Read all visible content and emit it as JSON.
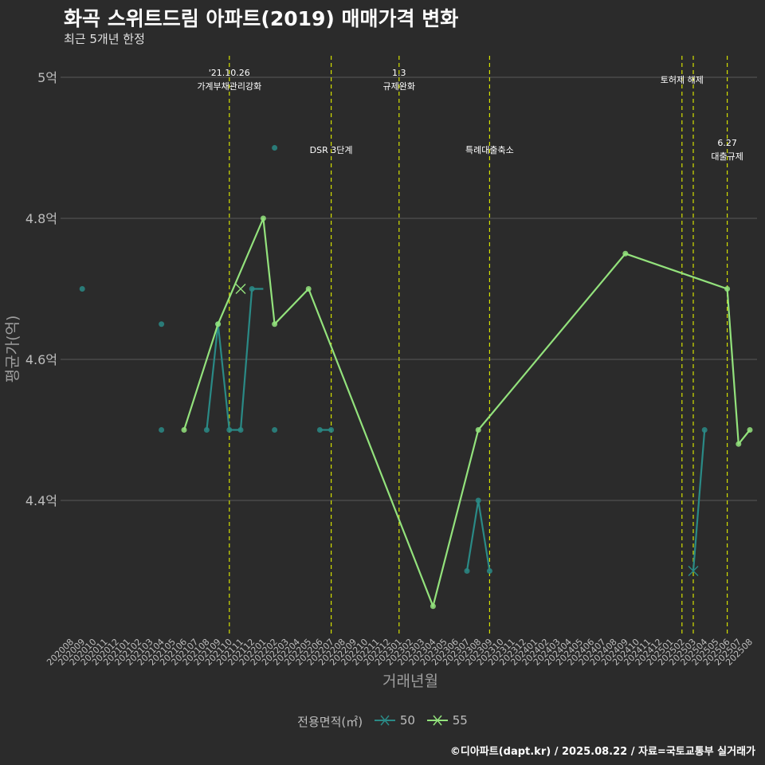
{
  "title": "화곡 스위트드림 아파트(2019) 매매가격 변화",
  "subtitle": "최근 5개년 한정",
  "caption": "©디아파트(dapt.kr) / 2025.08.22 / 자료=국토교통부 실거래가",
  "colors": {
    "background": "#2b2b2b",
    "grid": "#5a5a5a",
    "series_50": "#2a8a86",
    "series_55": "#93e27c",
    "vline": "#d4e000",
    "text": "#ffffff",
    "axis_text": "#bdbdbd"
  },
  "chart_data": {
    "type": "line",
    "title": "화곡 스위트드림 아파트(2019) 매매가격 변화",
    "xlabel": "거래년월",
    "ylabel": "평균가(억)",
    "ylim": [
      4.215,
      5.03
    ],
    "yticks": [
      4.4,
      4.6,
      4.8,
      5.0
    ],
    "ytick_labels": [
      "4.4억",
      "4.6억",
      "4.8억",
      "5억"
    ],
    "months": [
      "202008",
      "202009",
      "202010",
      "202011",
      "202012",
      "202101",
      "202102",
      "202103",
      "202104",
      "202105",
      "202106",
      "202107",
      "202108",
      "202109",
      "202110",
      "202111",
      "202112",
      "202201",
      "202202",
      "202203",
      "202204",
      "202205",
      "202206",
      "202207",
      "202208",
      "202209",
      "202210",
      "202211",
      "202212",
      "202301",
      "202302",
      "202303",
      "202304",
      "202305",
      "202306",
      "202307",
      "202308",
      "202309",
      "202310",
      "202311",
      "202312",
      "202401",
      "202402",
      "202403",
      "202404",
      "202405",
      "202406",
      "202407",
      "202408",
      "202409",
      "202410",
      "202411",
      "202412",
      "202501",
      "202502",
      "202503",
      "202504",
      "202505",
      "202506",
      "202507",
      "202508"
    ],
    "legend_title": "전용면적(㎡)",
    "series": [
      {
        "name": "50",
        "color_key": "series_50",
        "lines": [
          [
            [
              "202108",
              4.5
            ],
            [
              "202109",
              4.65
            ],
            [
              "202110",
              4.5
            ],
            [
              "202111",
              4.5
            ],
            [
              "202112",
              4.7
            ],
            [
              "202201",
              4.7
            ]
          ],
          [
            [
              "202206",
              4.5
            ],
            [
              "202207",
              4.5
            ]
          ],
          [
            [
              "202307",
              4.3
            ],
            [
              "202308",
              4.4
            ],
            [
              "202309",
              4.3
            ]
          ],
          [
            [
              "202503",
              4.3
            ],
            [
              "202504",
              4.5
            ]
          ]
        ],
        "points": [
          [
            "202009",
            4.7
          ],
          [
            "202104",
            4.65
          ],
          [
            "202104",
            4.5
          ],
          [
            "202108",
            4.5
          ],
          [
            "202109",
            4.65
          ],
          [
            "202110",
            4.5
          ],
          [
            "202111",
            4.5
          ],
          [
            "202112",
            4.7
          ],
          [
            "202202",
            4.9
          ],
          [
            "202202",
            4.5
          ],
          [
            "202206",
            4.5
          ],
          [
            "202207",
            4.5
          ],
          [
            "202307",
            4.3
          ],
          [
            "202308",
            4.4
          ],
          [
            "202309",
            4.3
          ],
          [
            "202504",
            4.5
          ]
        ],
        "crosses": [
          [
            "202503",
            4.3
          ]
        ]
      },
      {
        "name": "55",
        "color_key": "series_55",
        "lines": [
          [
            [
              "202106",
              4.5
            ],
            [
              "202109",
              4.65
            ],
            [
              "202201",
              4.8
            ],
            [
              "202202",
              4.65
            ],
            [
              "202205",
              4.7
            ],
            [
              "202304",
              4.25
            ],
            [
              "202308",
              4.5
            ],
            [
              "202409",
              4.75
            ],
            [
              "202506",
              4.7
            ],
            [
              "202507",
              4.48
            ],
            [
              "202508",
              4.5
            ]
          ]
        ],
        "points": [
          [
            "202106",
            4.5
          ],
          [
            "202109",
            4.65
          ],
          [
            "202201",
            4.8
          ],
          [
            "202202",
            4.65
          ],
          [
            "202205",
            4.7
          ],
          [
            "202304",
            4.25
          ],
          [
            "202308",
            4.5
          ],
          [
            "202409",
            4.75
          ],
          [
            "202506",
            4.7
          ],
          [
            "202507",
            4.48
          ],
          [
            "202508",
            4.5
          ]
        ],
        "crosses": [
          [
            "202111",
            4.7
          ]
        ]
      }
    ],
    "events": [
      {
        "month": "202110",
        "line1": "'21.10.26",
        "line2": "가계부채관리강화",
        "row": "top"
      },
      {
        "month": "202207",
        "line1": "",
        "line2": "DSR 3단계",
        "row": "mid"
      },
      {
        "month": "202301",
        "line1": "1.3",
        "line2": "규제완화",
        "row": "top"
      },
      {
        "month": "202309",
        "line1": "",
        "line2": "특례대출축소",
        "row": "mid"
      },
      {
        "month": "202502",
        "line1": "",
        "line2": "토허제 해제",
        "row": "top"
      },
      {
        "month": "202503",
        "line1": "",
        "line2": "",
        "row": "none"
      },
      {
        "month": "202506",
        "line1": "6.27",
        "line2": "대출규제",
        "row": "mid"
      }
    ]
  }
}
